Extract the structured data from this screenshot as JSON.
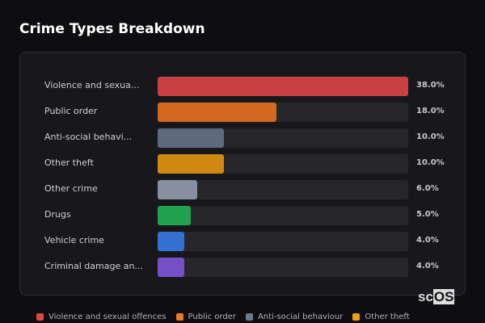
{
  "title": "Crime Types Breakdown",
  "chart_data": {
    "type": "bar",
    "orientation": "horizontal",
    "title": "Crime Types Breakdown",
    "categories": [
      "Violence and sexua...",
      "Public order",
      "Anti-social behavi...",
      "Other theft",
      "Other crime",
      "Drugs",
      "Vehicle crime",
      "Criminal damage an..."
    ],
    "values": [
      38.0,
      18.0,
      10.0,
      10.0,
      6.0,
      5.0,
      4.0,
      4.0
    ],
    "value_labels": [
      "38.0%",
      "18.0%",
      "10.0%",
      "10.0%",
      "6.0%",
      "5.0%",
      "4.0%",
      "4.0%"
    ],
    "colors": [
      "#c94043",
      "#d2691e",
      "#5e6a7c",
      "#d08a12",
      "#8690a0",
      "#22a24e",
      "#3470d0",
      "#7550c8"
    ],
    "xlim": [
      0,
      38
    ],
    "legend": {
      "placement": "bottom",
      "entries": [
        {
          "label": "Violence and sexual offences",
          "color": "#e04448"
        },
        {
          "label": "Public order",
          "color": "#f07a1e"
        },
        {
          "label": "Anti-social behaviour",
          "color": "#6b7a90"
        },
        {
          "label": "Other theft",
          "color": "#f0a010"
        }
      ]
    }
  },
  "logo": {
    "prefix": "sc",
    "box": "OS"
  }
}
